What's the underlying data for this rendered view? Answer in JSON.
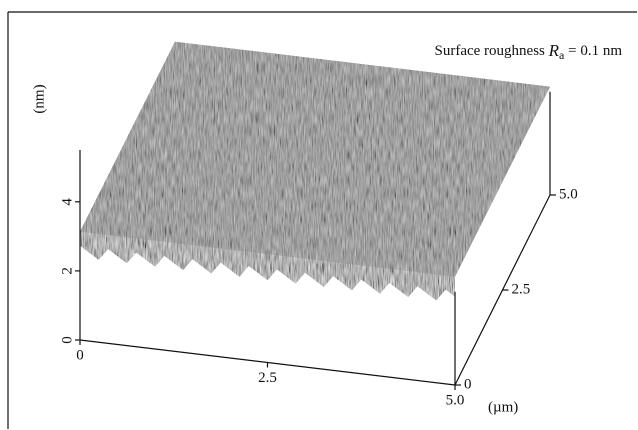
{
  "chart_data": {
    "type": "surface3d",
    "annotation": {
      "text": "Surface roughness ",
      "symbol": "R",
      "subscript": "a",
      "value_text": " = 0.1 nm"
    },
    "z_label": "(nm)",
    "x_label": "(µm)",
    "xlim": [
      0,
      5
    ],
    "xticks": [
      0,
      2.5,
      {
        "value": 5,
        "label": "5.0"
      }
    ],
    "ylim": [
      0,
      5
    ],
    "yticks": [
      0,
      2.5,
      {
        "value": 5,
        "label": "5.0"
      }
    ],
    "zlim": [
      0,
      5.5
    ],
    "zticks": [
      0,
      2,
      4
    ],
    "color": "#777777"
  }
}
